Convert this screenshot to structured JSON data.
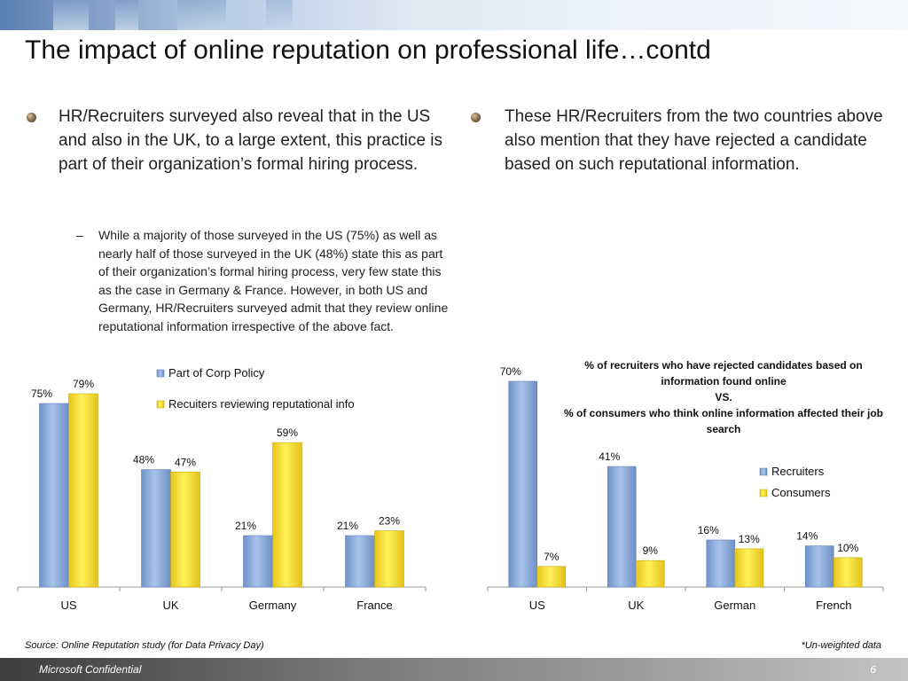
{
  "slide": {
    "title": "The impact of online reputation on professional life…contd",
    "bullet_left": "HR/Recruiters surveyed also reveal that in the US and also in the UK, to a large extent, this practice is part of their organization’s formal hiring process.",
    "sub_bullet_dash": "–",
    "sub_bullet": "While a majority of those surveyed in the US (75%) as well as nearly half of those surveyed in the UK (48%) state this as part of their organization’s formal hiring process, very few state this as the case in Germany & France. However, in both US and Germany, HR/Recruiters surveyed admit that they review online reputational information irrespective of the above fact.",
    "bullet_right": "These HR/Recruiters from the two countries above also mention that they have rejected a candidate based on such reputational information.",
    "source": "Source: Online Reputation study (for Data Privacy Day)",
    "note": "*Un-weighted data",
    "confidential": "Microsoft Confidential",
    "page_number": "6"
  },
  "colors": {
    "blue_series": "#8fb0de",
    "yellow_series": "#ffe22e"
  },
  "chart_data": [
    {
      "type": "bar",
      "title": "",
      "categories": [
        "US",
        "UK",
        "Germany",
        "France"
      ],
      "series": [
        {
          "name": "Part of Corp Policy",
          "values": [
            75,
            48,
            21,
            21
          ],
          "labels": [
            "75%",
            "48%",
            "21%",
            "21%"
          ]
        },
        {
          "name": "Recuiters reviewing reputational info",
          "values": [
            79,
            47,
            59,
            23
          ],
          "labels": [
            "79%",
            "47%",
            "59%",
            "23%"
          ]
        }
      ],
      "ylim": [
        0,
        79
      ],
      "legend": "top-center",
      "grid": false
    },
    {
      "type": "bar",
      "title_lines": [
        "% of recruiters who have rejected candidates based on",
        "information found online",
        "VS.",
        "% of consumers who think online information affected their job",
        "search"
      ],
      "categories": [
        "US",
        "UK",
        "German",
        "French"
      ],
      "series": [
        {
          "name": "Recruiters",
          "values": [
            70,
            41,
            16,
            14
          ],
          "labels": [
            "70%",
            "41%",
            "16%",
            "14%"
          ]
        },
        {
          "name": "Consumers",
          "values": [
            7,
            9,
            13,
            10
          ],
          "labels": [
            "7%",
            "9%",
            "13%",
            "10%"
          ]
        }
      ],
      "ylim": [
        0,
        70
      ],
      "legend": "right",
      "grid": false
    }
  ]
}
